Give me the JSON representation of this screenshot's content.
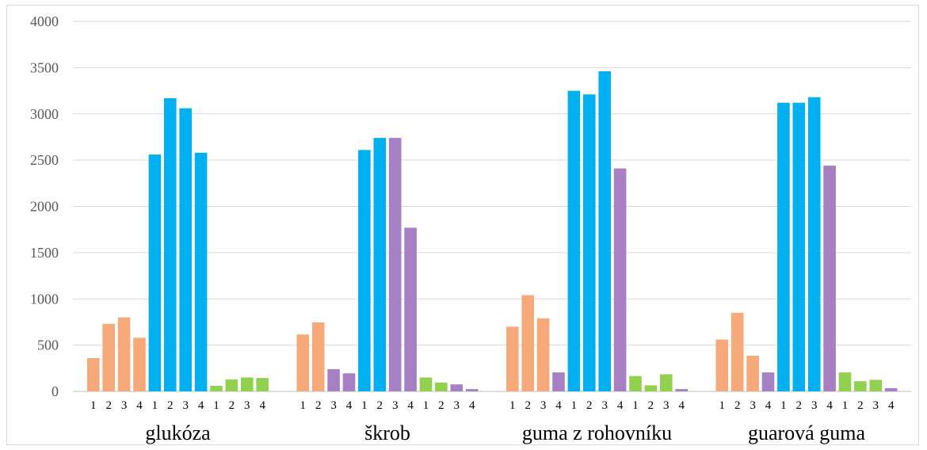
{
  "chart_data": {
    "type": "bar",
    "title": "",
    "xlabel": "",
    "ylabel": "",
    "ylim": [
      0,
      4000
    ],
    "yticks": [
      0,
      500,
      1000,
      1500,
      2000,
      2500,
      3000,
      3500,
      4000
    ],
    "grid": true,
    "legend": "none",
    "sub_labels": [
      "1",
      "2",
      "3",
      "4"
    ],
    "colors": {
      "orange": "#f8a97a",
      "blue": "#00b0f0",
      "purple": "#a67fc4",
      "green": "#92d050"
    },
    "groups": [
      {
        "label": "glukóza",
        "bars": [
          {
            "sub": "1",
            "value": 360,
            "color": "orange"
          },
          {
            "sub": "2",
            "value": 730,
            "color": "orange"
          },
          {
            "sub": "3",
            "value": 800,
            "color": "orange"
          },
          {
            "sub": "4",
            "value": 580,
            "color": "orange"
          },
          {
            "sub": "1",
            "value": 2560,
            "color": "blue"
          },
          {
            "sub": "2",
            "value": 3170,
            "color": "blue"
          },
          {
            "sub": "3",
            "value": 3060,
            "color": "blue"
          },
          {
            "sub": "4",
            "value": 2580,
            "color": "blue"
          },
          {
            "sub": "1",
            "value": 60,
            "color": "green"
          },
          {
            "sub": "2",
            "value": 130,
            "color": "green"
          },
          {
            "sub": "3",
            "value": 150,
            "color": "green"
          },
          {
            "sub": "4",
            "value": 145,
            "color": "green"
          }
        ]
      },
      {
        "label": "škrob",
        "bars": [
          {
            "sub": "1",
            "value": 615,
            "color": "orange"
          },
          {
            "sub": "2",
            "value": 745,
            "color": "orange"
          },
          {
            "sub": "3",
            "value": 240,
            "color": "purple"
          },
          {
            "sub": "4",
            "value": 195,
            "color": "purple"
          },
          {
            "sub": "1",
            "value": 2610,
            "color": "blue"
          },
          {
            "sub": "2",
            "value": 2740,
            "color": "blue"
          },
          {
            "sub": "3",
            "value": 2740,
            "color": "purple"
          },
          {
            "sub": "4",
            "value": 1770,
            "color": "purple"
          },
          {
            "sub": "1",
            "value": 150,
            "color": "green"
          },
          {
            "sub": "2",
            "value": 95,
            "color": "green"
          },
          {
            "sub": "3",
            "value": 75,
            "color": "purple"
          },
          {
            "sub": "4",
            "value": 25,
            "color": "purple"
          }
        ]
      },
      {
        "label": "guma z rohovníku",
        "bars": [
          {
            "sub": "1",
            "value": 700,
            "color": "orange"
          },
          {
            "sub": "2",
            "value": 1040,
            "color": "orange"
          },
          {
            "sub": "3",
            "value": 790,
            "color": "orange"
          },
          {
            "sub": "4",
            "value": 205,
            "color": "purple"
          },
          {
            "sub": "1",
            "value": 3250,
            "color": "blue"
          },
          {
            "sub": "2",
            "value": 3210,
            "color": "blue"
          },
          {
            "sub": "3",
            "value": 3460,
            "color": "blue"
          },
          {
            "sub": "4",
            "value": 2410,
            "color": "purple"
          },
          {
            "sub": "1",
            "value": 165,
            "color": "green"
          },
          {
            "sub": "2",
            "value": 65,
            "color": "green"
          },
          {
            "sub": "3",
            "value": 185,
            "color": "green"
          },
          {
            "sub": "4",
            "value": 25,
            "color": "purple"
          }
        ]
      },
      {
        "label": "guarová guma",
        "bars": [
          {
            "sub": "1",
            "value": 560,
            "color": "orange"
          },
          {
            "sub": "2",
            "value": 850,
            "color": "orange"
          },
          {
            "sub": "3",
            "value": 385,
            "color": "orange"
          },
          {
            "sub": "4",
            "value": 205,
            "color": "purple"
          },
          {
            "sub": "1",
            "value": 3120,
            "color": "blue"
          },
          {
            "sub": "2",
            "value": 3120,
            "color": "blue"
          },
          {
            "sub": "3",
            "value": 3180,
            "color": "blue"
          },
          {
            "sub": "4",
            "value": 2440,
            "color": "purple"
          },
          {
            "sub": "1",
            "value": 205,
            "color": "green"
          },
          {
            "sub": "2",
            "value": 110,
            "color": "green"
          },
          {
            "sub": "3",
            "value": 125,
            "color": "green"
          },
          {
            "sub": "4",
            "value": 35,
            "color": "purple"
          }
        ]
      }
    ]
  }
}
